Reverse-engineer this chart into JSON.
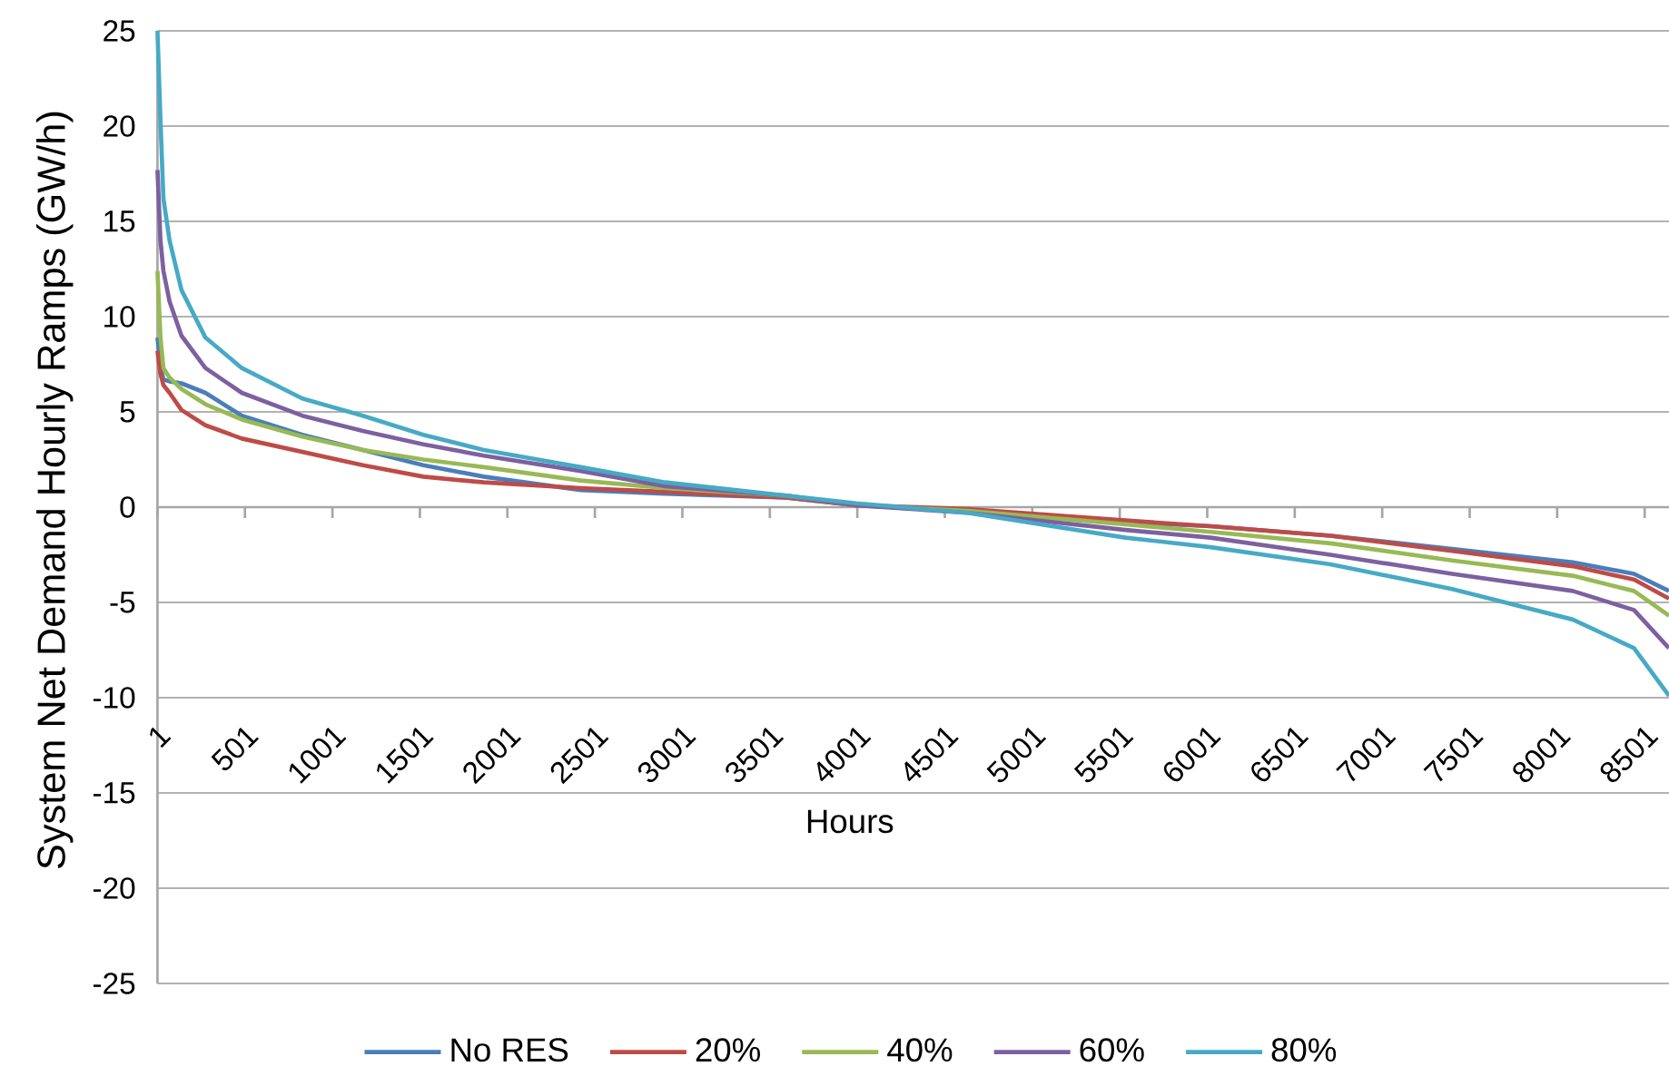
{
  "chart_data": {
    "type": "line",
    "xlabel": "Hours",
    "ylabel": "System Net Demand Hourly Ramps (GW/h)",
    "x": [
      1,
      18,
      35,
      70,
      138,
      275,
      483,
      829,
      1175,
      1520,
      1866,
      2420,
      2903,
      3594,
      3995,
      4631,
      5533,
      6020,
      6705,
      7400,
      8090,
      8440,
      8640
    ],
    "series": [
      {
        "name": "No RES",
        "color": "#4a7ebb",
        "values": [
          8.9,
          7.4,
          6.7,
          6.6,
          6.5,
          6.0,
          4.8,
          3.8,
          3.0,
          2.2,
          1.6,
          0.9,
          0.7,
          0.5,
          0.1,
          -0.2,
          -0.8,
          -1.0,
          -1.5,
          -2.2,
          -2.9,
          -3.5,
          -4.4
        ]
      },
      {
        "name": "20%",
        "color": "#be4b48",
        "values": [
          8.2,
          7.0,
          6.4,
          6.0,
          5.1,
          4.3,
          3.6,
          2.9,
          2.2,
          1.6,
          1.3,
          1.0,
          0.8,
          0.5,
          0.1,
          -0.1,
          -0.7,
          -1.0,
          -1.5,
          -2.3,
          -3.1,
          -3.8,
          -4.8
        ]
      },
      {
        "name": "40%",
        "color": "#98b954",
        "values": [
          12.4,
          8.9,
          7.3,
          6.8,
          6.2,
          5.4,
          4.6,
          3.7,
          3.0,
          2.5,
          2.1,
          1.4,
          1.0,
          0.6,
          0.1,
          -0.2,
          -0.9,
          -1.3,
          -1.9,
          -2.8,
          -3.6,
          -4.4,
          -5.7
        ]
      },
      {
        "name": "60%",
        "color": "#7d60a0",
        "values": [
          17.7,
          14.0,
          12.4,
          10.8,
          9.0,
          7.3,
          6.0,
          4.8,
          4.0,
          3.3,
          2.7,
          1.9,
          1.1,
          0.6,
          0.1,
          -0.3,
          -1.2,
          -1.6,
          -2.5,
          -3.5,
          -4.4,
          -5.4,
          -7.4
        ]
      },
      {
        "name": "80%",
        "color": "#46aac5",
        "values": [
          25,
          20.3,
          16.2,
          14.0,
          11.4,
          8.9,
          7.3,
          5.7,
          4.8,
          3.8,
          3.0,
          2.1,
          1.3,
          0.6,
          0.2,
          -0.3,
          -1.6,
          -2.1,
          -3.0,
          -4.3,
          -5.9,
          -7.4,
          -9.9
        ]
      }
    ],
    "xlim": [
      1,
      8640
    ],
    "xticks": [
      1,
      501,
      1001,
      1501,
      2001,
      2501,
      3001,
      3501,
      4001,
      4501,
      5001,
      5501,
      6001,
      6501,
      7001,
      7501,
      8001,
      8501
    ],
    "ylim": [
      -25,
      25
    ],
    "yticks": [
      -25,
      -20,
      -15,
      -10,
      -5,
      0,
      5,
      10,
      15,
      20,
      25
    ],
    "grid": "y",
    "legend": "bottom",
    "marker": "none",
    "line_style": "solid"
  }
}
